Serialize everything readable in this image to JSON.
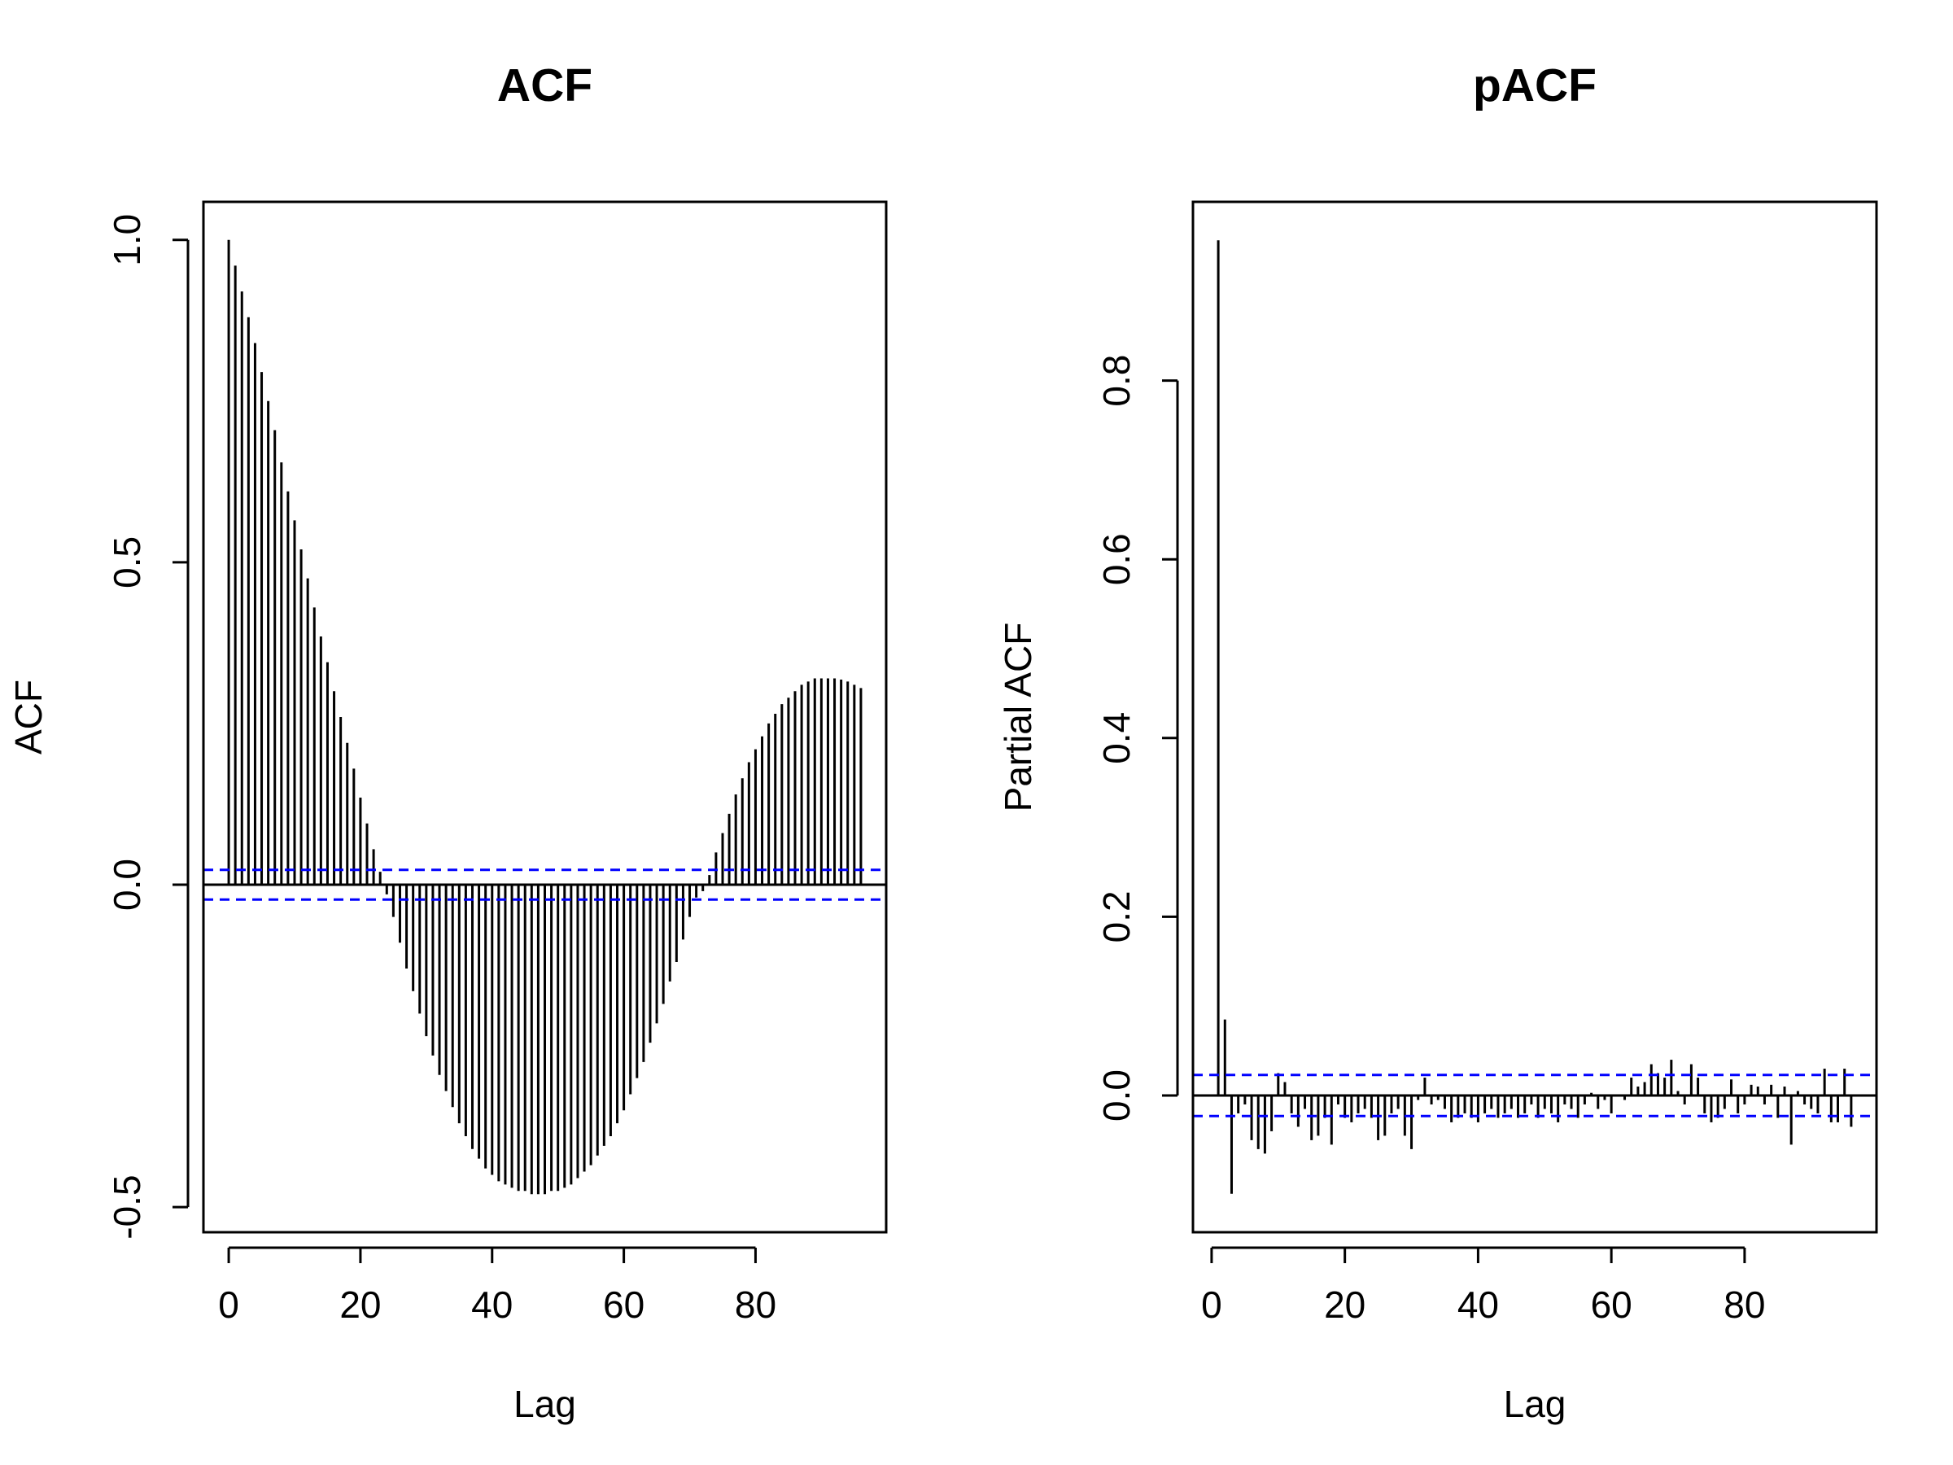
{
  "chart_data": [
    {
      "type": "acf",
      "title": "ACF",
      "x_label": "Lag",
      "y_label": "ACF",
      "color": "#000000",
      "ci": 0.023,
      "ci_color": "#0000ff",
      "x": [
        0,
        1,
        2,
        3,
        4,
        5,
        6,
        7,
        8,
        9,
        10,
        11,
        12,
        13,
        14,
        15,
        16,
        17,
        18,
        19,
        20,
        21,
        22,
        23,
        24,
        25,
        26,
        27,
        28,
        29,
        30,
        31,
        32,
        33,
        34,
        35,
        36,
        37,
        38,
        39,
        40,
        41,
        42,
        43,
        44,
        45,
        46,
        47,
        48,
        49,
        50,
        51,
        52,
        53,
        54,
        55,
        56,
        57,
        58,
        59,
        60,
        61,
        62,
        63,
        64,
        65,
        66,
        67,
        68,
        69,
        70,
        71,
        72,
        73,
        74,
        75,
        76,
        77,
        78,
        79,
        80,
        81,
        82,
        83,
        84,
        85,
        86,
        87,
        88,
        89,
        90,
        91,
        92,
        93,
        94,
        95,
        96
      ],
      "values": [
        1.0,
        0.96,
        0.92,
        0.88,
        0.84,
        0.795,
        0.75,
        0.705,
        0.655,
        0.61,
        0.565,
        0.52,
        0.475,
        0.43,
        0.385,
        0.345,
        0.3,
        0.26,
        0.22,
        0.18,
        0.135,
        0.095,
        0.055,
        0.02,
        -0.015,
        -0.05,
        -0.09,
        -0.13,
        -0.165,
        -0.2,
        -0.235,
        -0.265,
        -0.295,
        -0.32,
        -0.345,
        -0.37,
        -0.39,
        -0.41,
        -0.425,
        -0.44,
        -0.45,
        -0.46,
        -0.465,
        -0.47,
        -0.475,
        -0.475,
        -0.48,
        -0.48,
        -0.48,
        -0.475,
        -0.475,
        -0.47,
        -0.465,
        -0.455,
        -0.445,
        -0.435,
        -0.42,
        -0.405,
        -0.39,
        -0.37,
        -0.35,
        -0.325,
        -0.3,
        -0.275,
        -0.245,
        -0.215,
        -0.185,
        -0.15,
        -0.12,
        -0.085,
        -0.05,
        -0.02,
        -0.01,
        0.015,
        0.05,
        0.08,
        0.11,
        0.14,
        0.165,
        0.19,
        0.21,
        0.23,
        0.25,
        0.265,
        0.28,
        0.29,
        0.3,
        0.31,
        0.315,
        0.32,
        0.32,
        0.32,
        0.32,
        0.318,
        0.315,
        0.31,
        0.305
      ],
      "xlim": [
        -3.84,
        99.84
      ],
      "ylim": [
        -0.539,
        1.059
      ],
      "xticks": [
        0,
        20,
        40,
        60,
        80
      ],
      "yticks": [
        -0.5,
        {
          "value": 0,
          "label": "0.0"
        },
        0.5,
        {
          "value": 1,
          "label": "1.0"
        }
      ]
    },
    {
      "type": "acf",
      "title": "pACF",
      "x_label": "Lag",
      "y_label": "Partial ACF",
      "color": "#000000",
      "ci": 0.023,
      "ci_color": "#0000ff",
      "x": [
        1,
        2,
        3,
        4,
        5,
        6,
        7,
        8,
        9,
        10,
        11,
        12,
        13,
        14,
        15,
        16,
        17,
        18,
        19,
        20,
        21,
        22,
        23,
        24,
        25,
        26,
        27,
        28,
        29,
        30,
        31,
        32,
        33,
        34,
        35,
        36,
        37,
        38,
        39,
        40,
        41,
        42,
        43,
        44,
        45,
        46,
        47,
        48,
        49,
        50,
        51,
        52,
        53,
        54,
        55,
        56,
        57,
        58,
        59,
        60,
        61,
        62,
        63,
        64,
        65,
        66,
        67,
        68,
        69,
        70,
        71,
        72,
        73,
        74,
        75,
        76,
        77,
        78,
        79,
        80,
        81,
        82,
        83,
        84,
        85,
        86,
        87,
        88,
        89,
        90,
        91,
        92,
        93,
        94,
        95,
        96
      ],
      "values": [
        0.957,
        0.085,
        -0.11,
        -0.02,
        -0.01,
        -0.05,
        -0.06,
        -0.065,
        -0.04,
        0.025,
        0.015,
        -0.02,
        -0.035,
        -0.015,
        -0.05,
        -0.045,
        -0.025,
        -0.055,
        -0.01,
        -0.025,
        -0.03,
        -0.02,
        -0.015,
        -0.025,
        -0.05,
        -0.045,
        -0.02,
        -0.015,
        -0.045,
        -0.06,
        -0.005,
        0.02,
        -0.01,
        -0.005,
        -0.015,
        -0.03,
        -0.025,
        -0.02,
        -0.025,
        -0.03,
        -0.02,
        -0.015,
        -0.025,
        -0.02,
        -0.015,
        -0.025,
        -0.02,
        -0.01,
        -0.025,
        -0.015,
        -0.02,
        -0.03,
        -0.01,
        -0.015,
        -0.025,
        -0.01,
        0.003,
        -0.015,
        -0.005,
        -0.02,
        0.0,
        -0.005,
        0.02,
        0.01,
        0.015,
        0.035,
        0.025,
        0.02,
        0.04,
        0.005,
        -0.01,
        0.035,
        0.02,
        -0.02,
        -0.03,
        -0.025,
        -0.015,
        0.018,
        -0.02,
        -0.01,
        0.012,
        0.01,
        -0.01,
        0.012,
        -0.025,
        0.01,
        -0.055,
        0.005,
        -0.01,
        -0.015,
        -0.02,
        0.03,
        -0.03,
        -0.03,
        0.03,
        -0.035
      ],
      "xlim": [
        -2.8,
        99.8
      ],
      "ylim": [
        -0.153,
        1.0
      ],
      "xticks": [
        0,
        20,
        40,
        60,
        80
      ],
      "yticks": [
        {
          "value": 0,
          "label": "0.0"
        },
        0.2,
        0.4,
        0.6,
        0.8
      ]
    }
  ]
}
